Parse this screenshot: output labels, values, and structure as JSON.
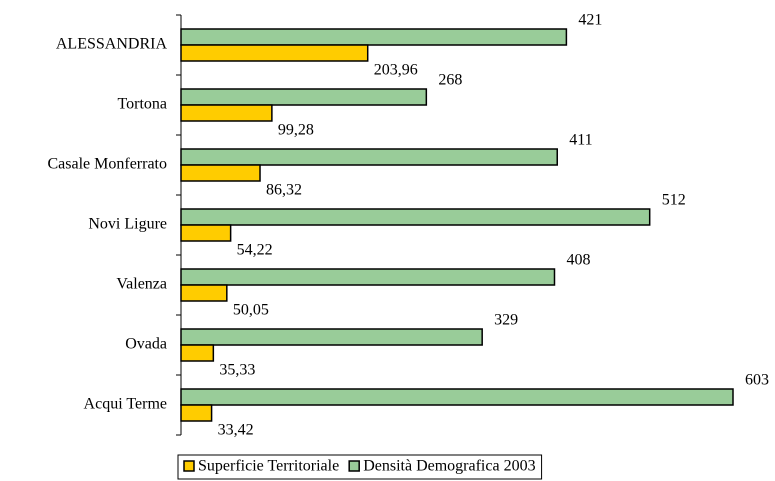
{
  "chart_data": {
    "type": "bar",
    "orientation": "horizontal",
    "categories": [
      "ALESSANDRIA",
      "Tortona",
      "Casale Monferrato",
      "Novi Ligure",
      "Valenza",
      "Ovada",
      "Acqui Terme"
    ],
    "series": [
      {
        "name": "Superficie Territoriale",
        "color": "#ffcc00",
        "values": [
          203.96,
          99.28,
          86.32,
          54.22,
          50.05,
          35.33,
          33.42
        ],
        "value_labels": [
          "203,96",
          "99,28",
          "86,32",
          "54,22",
          "50,05",
          "35,33",
          "33,42"
        ]
      },
      {
        "name": "Densità Demografica 2003",
        "color": "#99cc99",
        "values": [
          421,
          268,
          411,
          512,
          408,
          329,
          603
        ]
      }
    ],
    "legend": "bottom"
  }
}
